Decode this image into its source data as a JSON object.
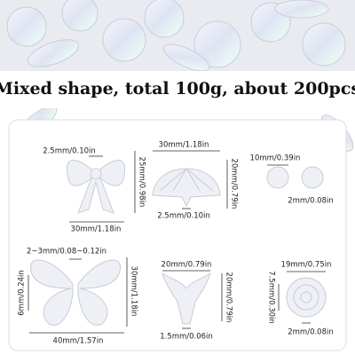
{
  "header": {
    "title": "Mixed shape, total 100g, about 200pcs"
  },
  "items": [
    {
      "shape": "bow",
      "labels": [
        "2.5mm/0.10in",
        "25mm/0.98in",
        "30mm/1.18in"
      ]
    },
    {
      "shape": "fan",
      "labels": [
        "30mm/1.18in",
        "20mm/0.79in",
        "2.5mm/0.10in"
      ]
    },
    {
      "shape": "bead",
      "labels": [
        "10mm/0.39in",
        "2mm/0.08in"
      ]
    },
    {
      "shape": "butterfly",
      "labels": [
        "2~3mm/0.08~0.12in",
        "6mm/0.24in",
        "30mm/1.18in",
        "40mm/1.57in"
      ]
    },
    {
      "shape": "fishtail",
      "labels": [
        "20mm/0.79in",
        "20mm/0.79in",
        "1.5mm/0.06in"
      ]
    },
    {
      "shape": "rose",
      "labels": [
        "19mm/0.75in",
        "7.5mm/0.30in",
        "2mm/0.08in"
      ]
    }
  ]
}
